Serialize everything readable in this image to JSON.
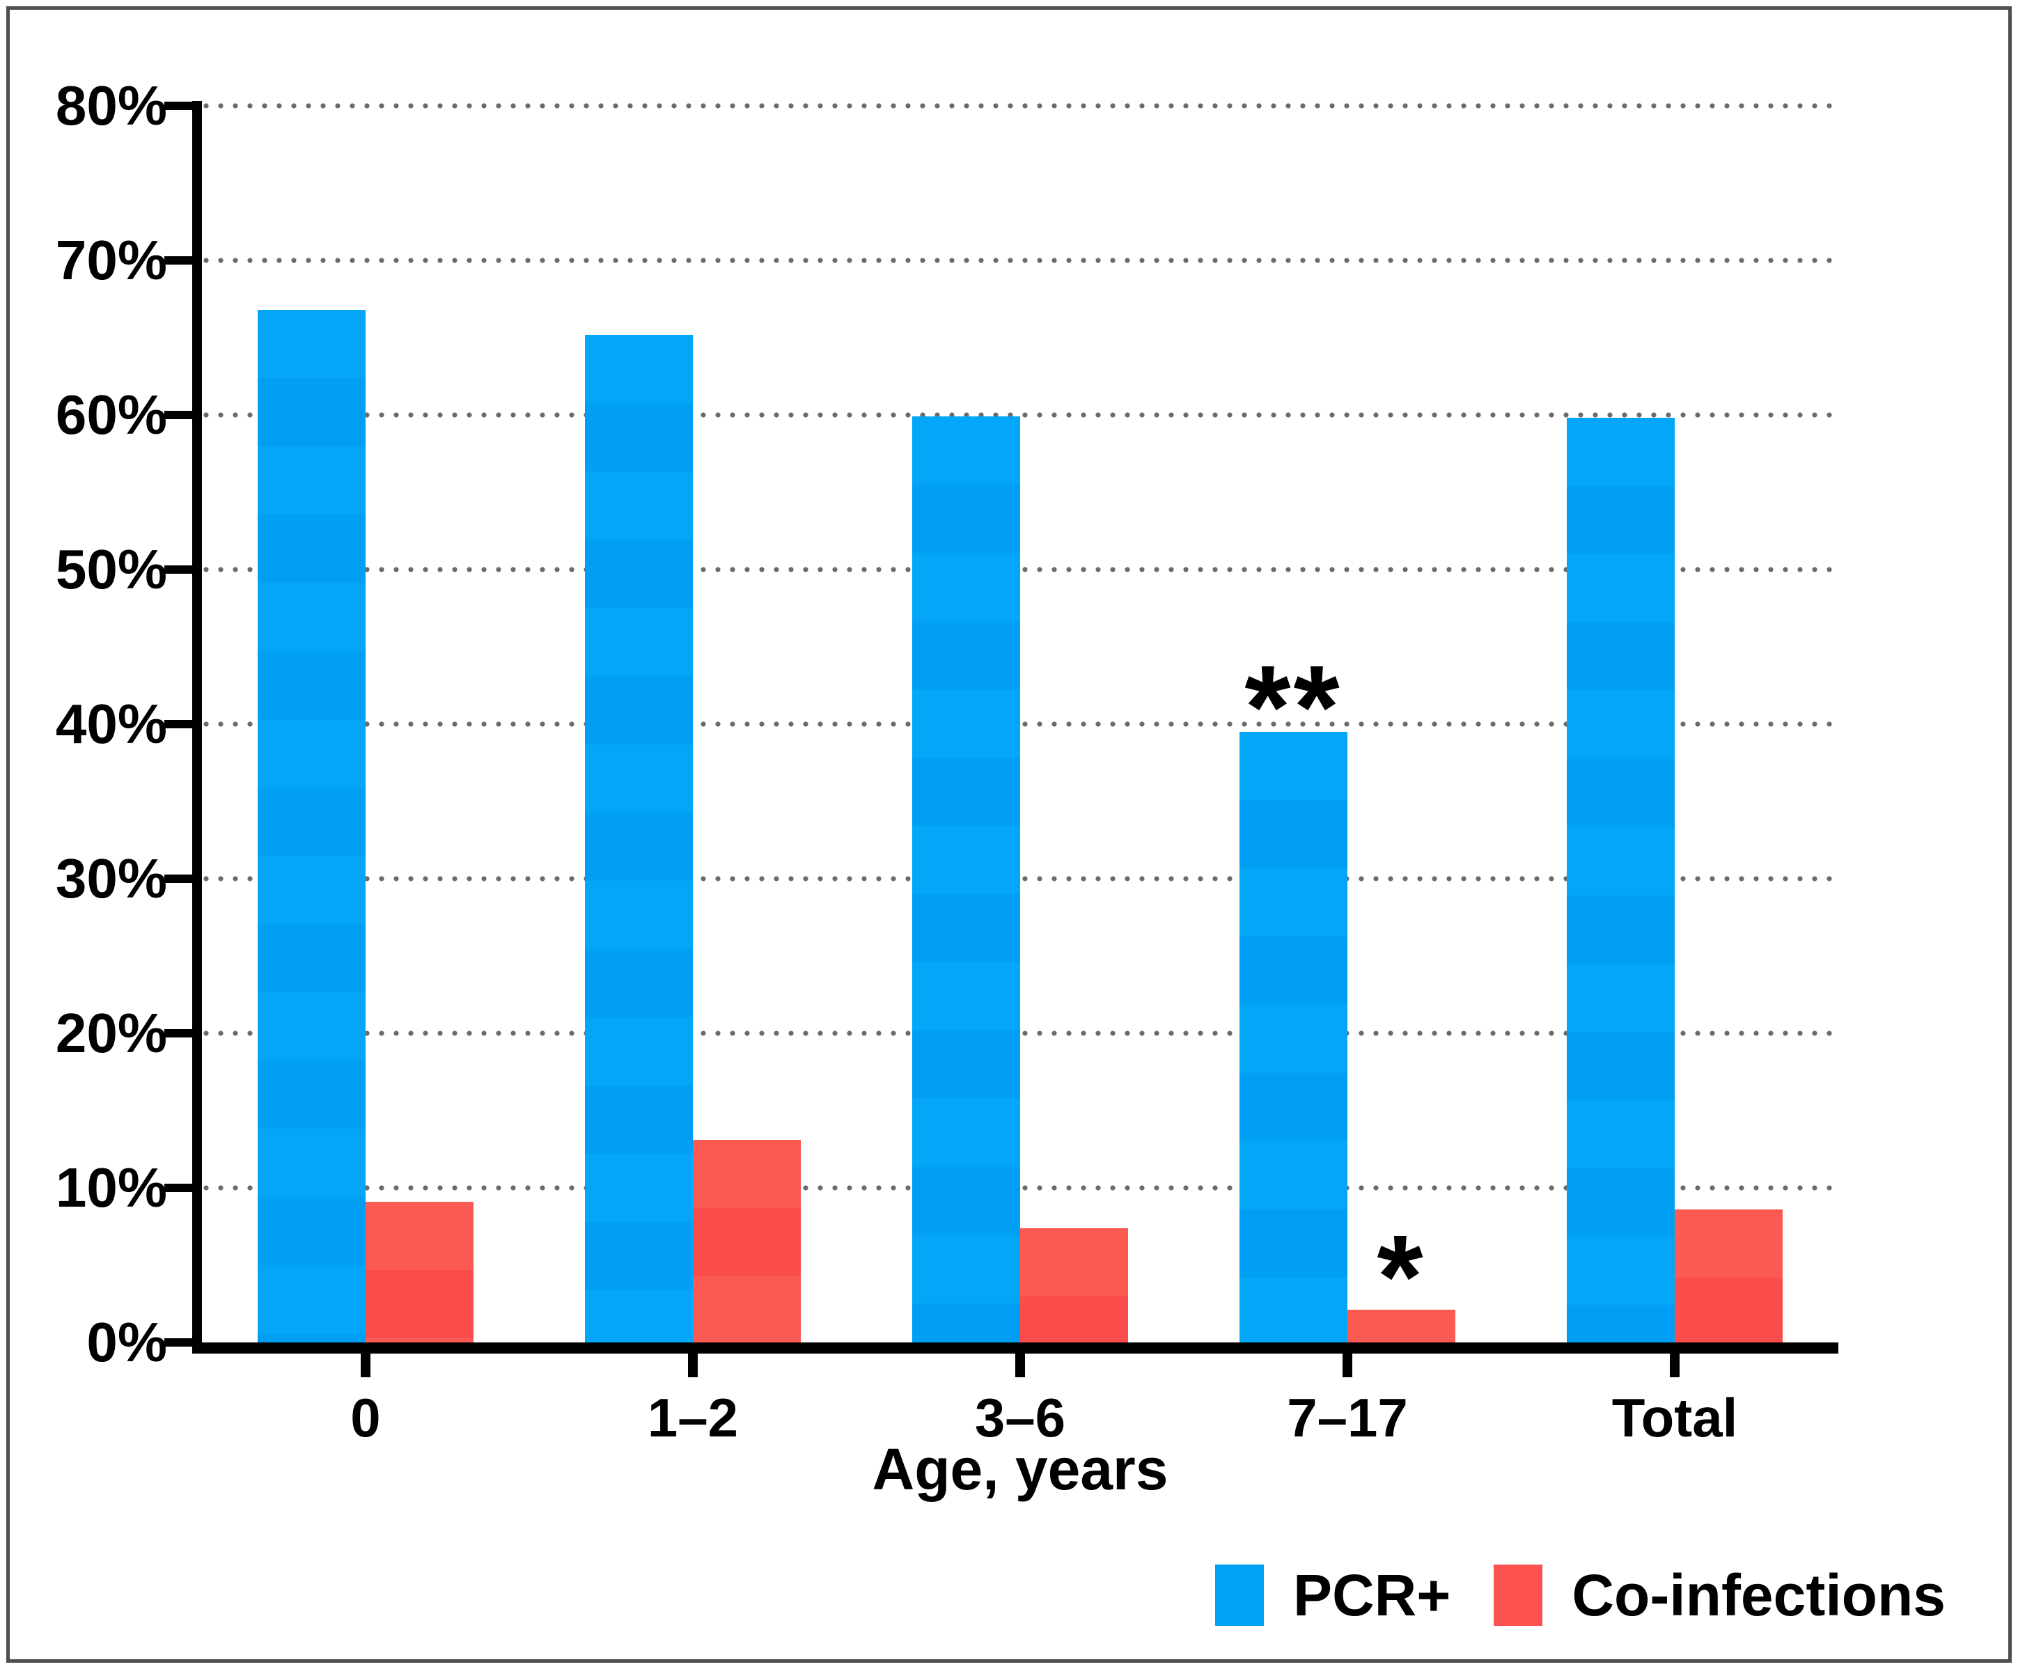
{
  "figure": {
    "background": "#ffffff",
    "frame_color": "#4f4f4f"
  },
  "chart_data": {
    "type": "bar",
    "title": "",
    "xlabel": "Age, years",
    "ylabel": "",
    "categories": [
      "0",
      "1–2",
      "3–6",
      "7–17",
      "Total"
    ],
    "series": [
      {
        "name": "PCR+",
        "color": "#00a2f6",
        "band_colors": [
          "#04a7f8",
          "#009ff3"
        ],
        "values": [
          66.8,
          65.2,
          59.9,
          39.5,
          59.8
        ]
      },
      {
        "name": "Co-infections",
        "color": "#fb524d",
        "band_colors": [
          "#fb5a53",
          "#fa4c4a"
        ],
        "values": [
          9.1,
          13.1,
          7.4,
          2.1,
          8.6
        ]
      }
    ],
    "ylim": [
      0,
      80
    ],
    "ytick_step": 10,
    "ytick_format": "{v}%",
    "grid": {
      "horizontal": true,
      "style": "dotted",
      "color": "#6a6a6a"
    },
    "legend_position": "bottom-right",
    "annotations": [
      {
        "series": "PCR+",
        "category": "7–17",
        "text": "**"
      },
      {
        "series": "Co-infections",
        "category": "7–17",
        "text": "*"
      }
    ]
  }
}
